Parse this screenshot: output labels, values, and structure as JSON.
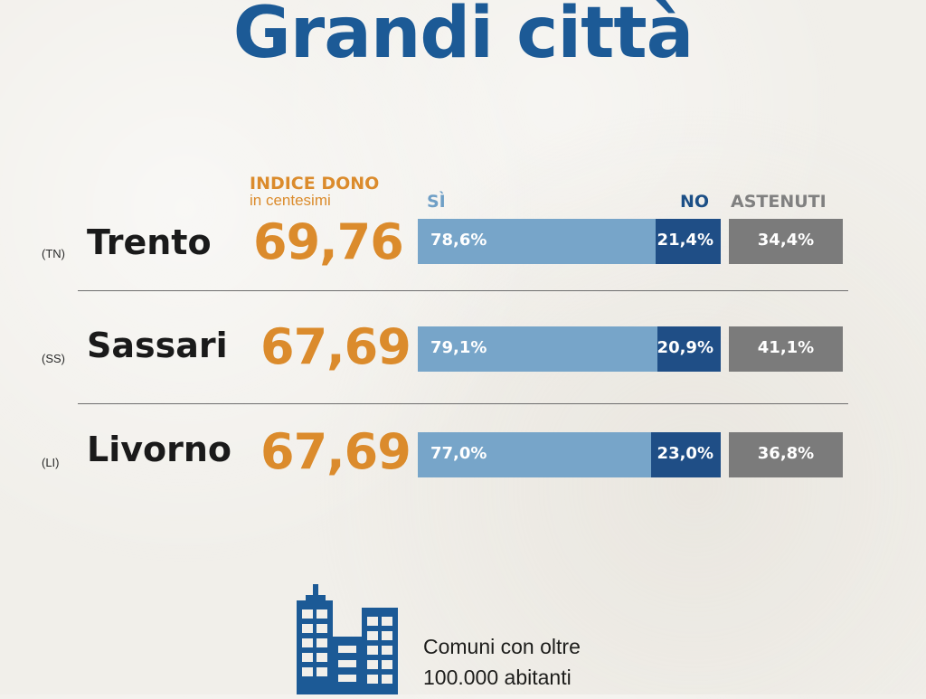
{
  "title": "Grandi città",
  "header": {
    "index_label": "INDICE DONO",
    "index_sublabel": "in centesimi",
    "si_label": "SÌ",
    "no_label": "NO",
    "astenuti_label": "ASTENUTI"
  },
  "colors": {
    "title": "#1c5a96",
    "index": "#db8b2c",
    "si": "#77a5c9",
    "no": "#1f4e86",
    "astenuti": "#7b7b7b"
  },
  "chart_data": {
    "type": "bar",
    "categories": [
      "Trento",
      "Sassari",
      "Livorno"
    ],
    "provinces": [
      "(TN)",
      "(SS)",
      "(LI)"
    ],
    "index_values": [
      "69,76",
      "67,69",
      "67,69"
    ],
    "series": [
      {
        "name": "SÌ",
        "values": [
          78.6,
          79.1,
          77.0
        ],
        "labels": [
          "78,6%",
          "79,1%",
          "77,0%"
        ]
      },
      {
        "name": "NO",
        "values": [
          21.4,
          20.9,
          23.0
        ],
        "labels": [
          "21,4%",
          "20,9%",
          "23,0%"
        ]
      },
      {
        "name": "ASTENUTI",
        "values": [
          34.4,
          41.1,
          36.8
        ],
        "labels": [
          "34,4%",
          "41,1%",
          "36,8%"
        ]
      }
    ],
    "stacked": true
  },
  "rows": [
    {
      "prov": "(TN)",
      "city": "Trento",
      "index": "69,76",
      "si": "78,6%",
      "no": "21,4%",
      "ast": "34,4%"
    },
    {
      "prov": "(SS)",
      "city": "Sassari",
      "index": "67,69",
      "si": "79,1%",
      "no": "20,9%",
      "ast": "41,1%"
    },
    {
      "prov": "(LI)",
      "city": "Livorno",
      "index": "67,69",
      "si": "77,0%",
      "no": "23,0%",
      "ast": "36,8%"
    }
  ],
  "footer": {
    "icon": "buildings-icon",
    "line1": "Comuni con oltre",
    "line2": "100.000 abitanti"
  }
}
